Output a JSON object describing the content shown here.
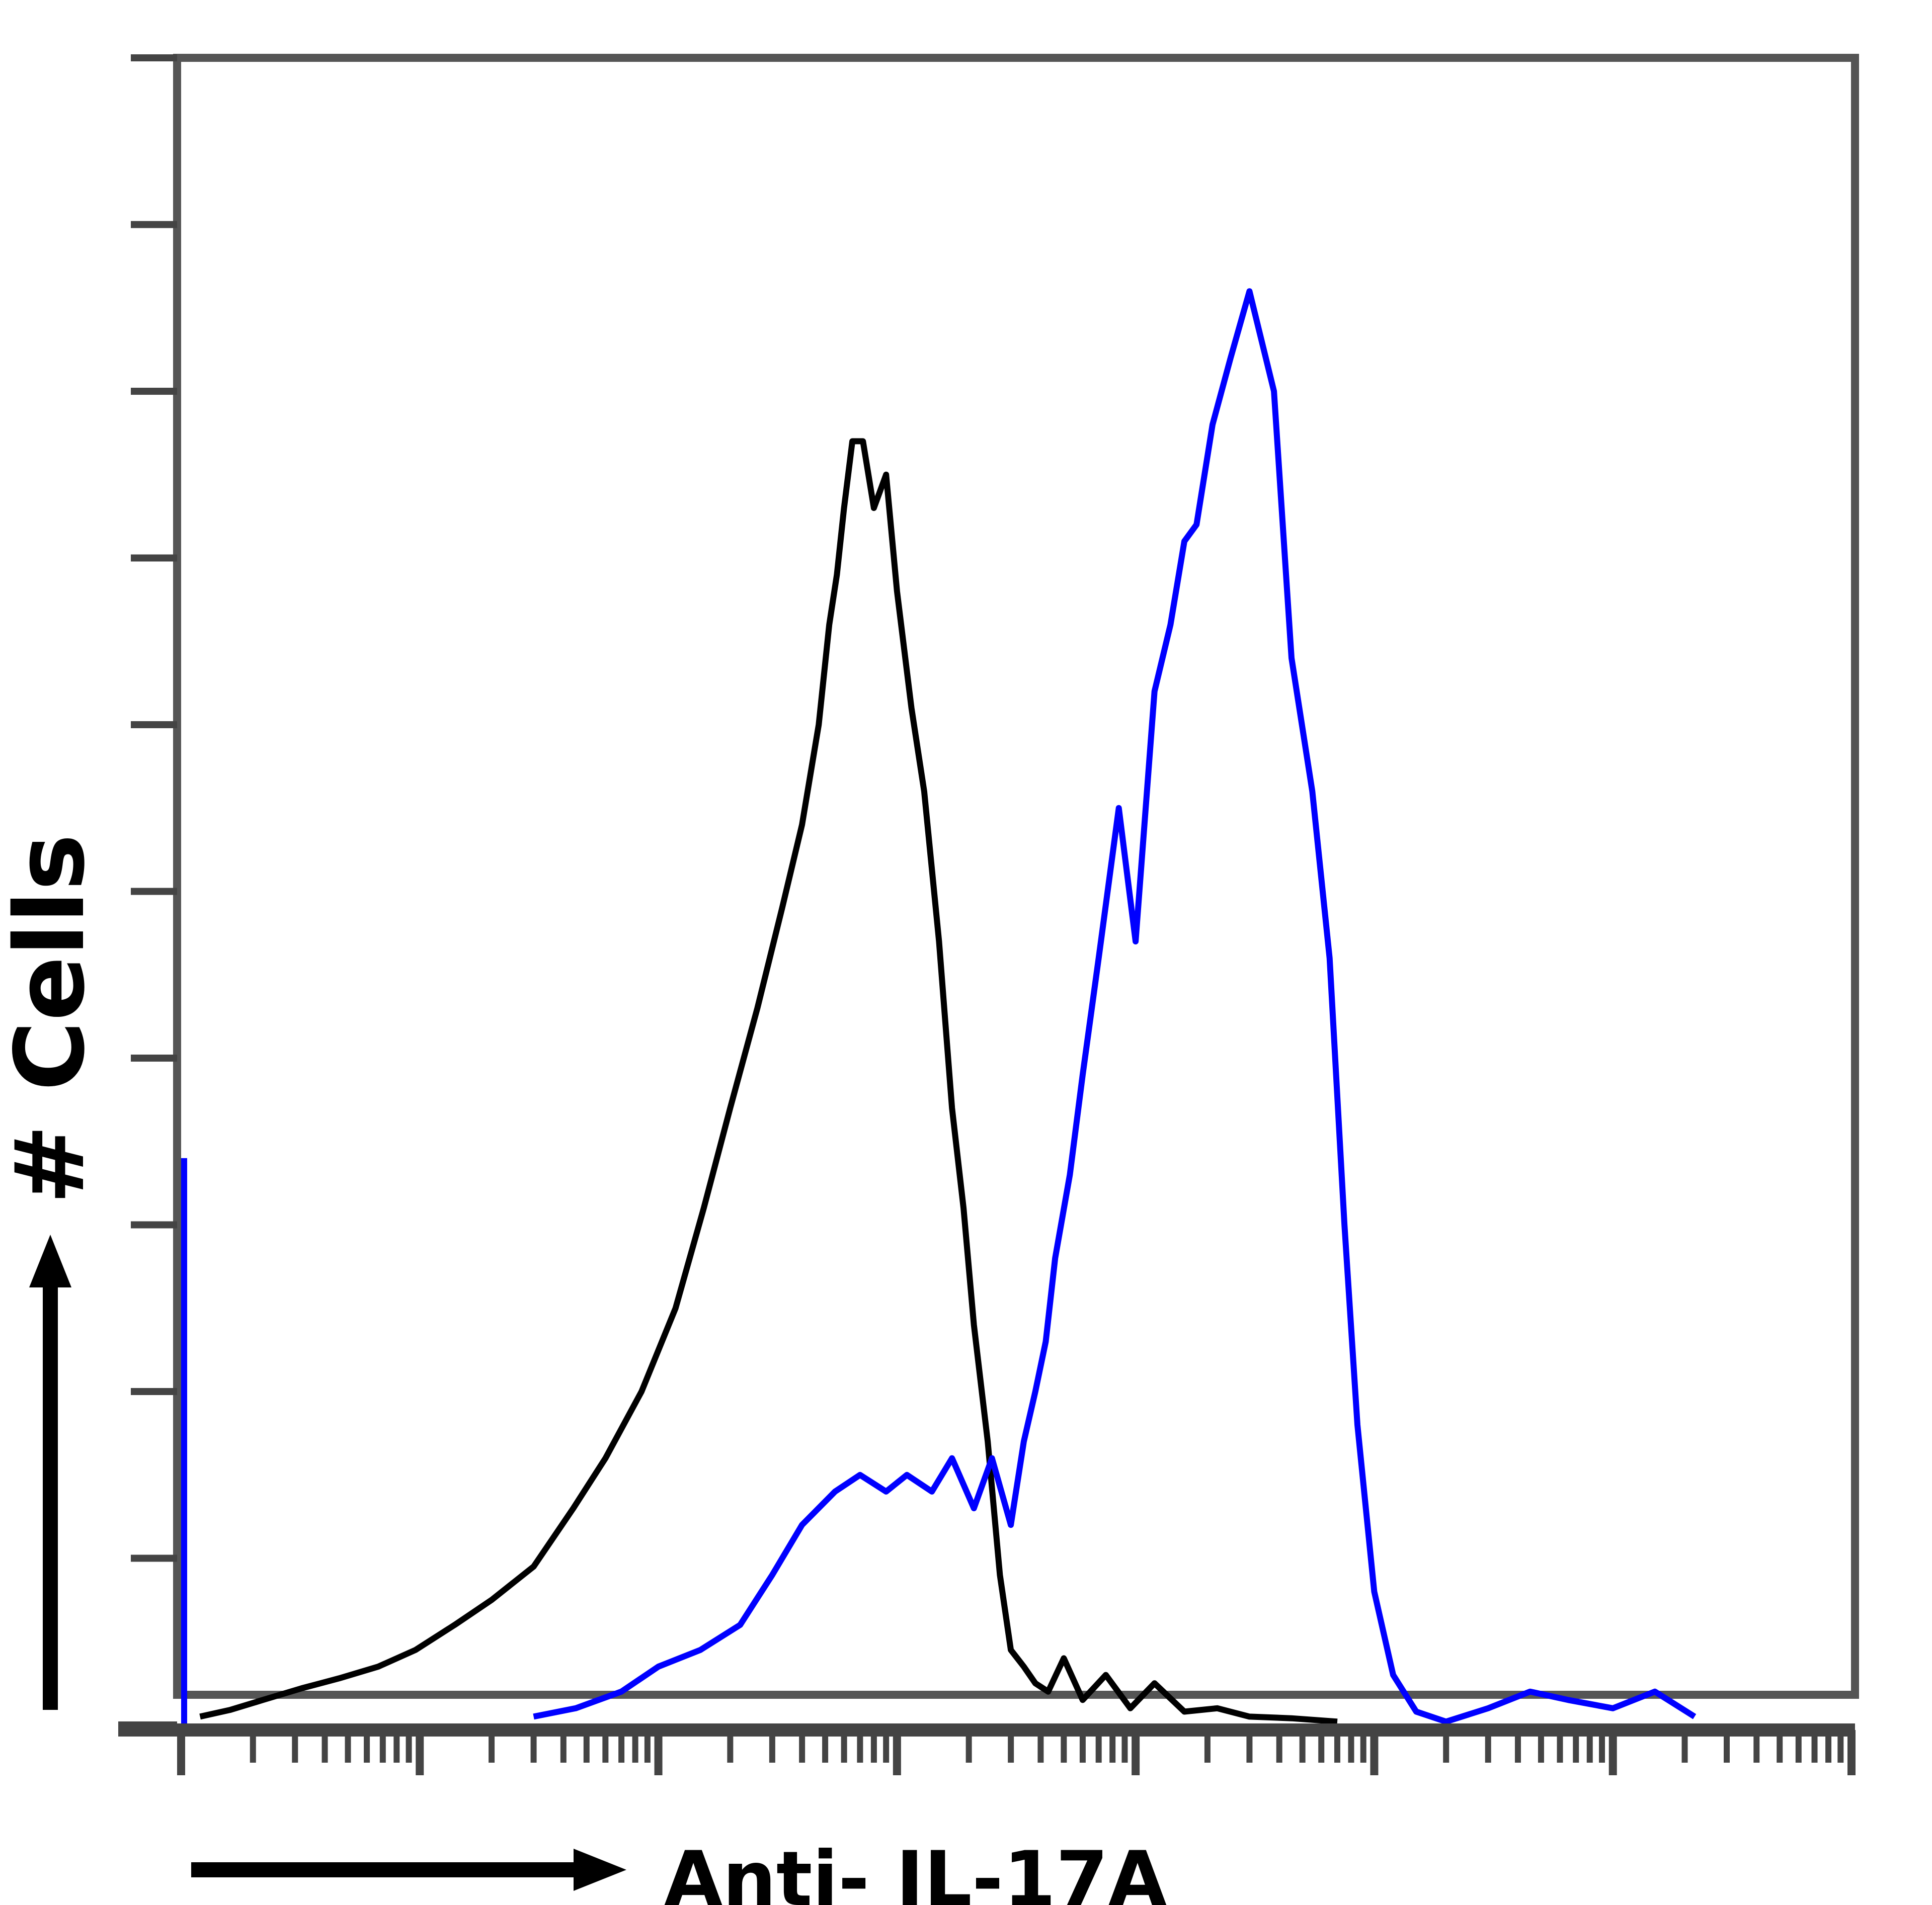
{
  "chart_data": {
    "type": "line",
    "title": "",
    "xlabel": "Anti- IL-17A",
    "ylabel": "# Cells",
    "x_scale": "log",
    "xlim": [
      1,
      10000000
    ],
    "ylim": [
      0,
      100
    ],
    "grid": false,
    "legend": "none",
    "series": [
      {
        "color": "#000000",
        "x": [
          1.2,
          1.6,
          2.2,
          3.2,
          4.6,
          6.7,
          9.6,
          14,
          20,
          30,
          44,
          60,
          85,
          118,
          155,
          200,
          260,
          330,
          400,
          470,
          520,
          560,
          600,
          650,
          720,
          800,
          900,
          1000,
          1150,
          1300,
          1500,
          1700,
          1900,
          2100,
          2400,
          2700,
          3000,
          3400,
          3800,
          4300,
          5000,
          6000,
          7500,
          9500,
          12000,
          16000,
          22000,
          30000,
          45000,
          70000
        ],
        "y": [
          0.5,
          0.9,
          1.5,
          2.2,
          2.8,
          3.5,
          4.5,
          6,
          7.5,
          9.5,
          13,
          16,
          20,
          25,
          31,
          37,
          43,
          49,
          54,
          60,
          66,
          69,
          73,
          77,
          77,
          73,
          75,
          68,
          61,
          56,
          47,
          37,
          31,
          24,
          17,
          9,
          4.5,
          3.5,
          2.5,
          2,
          4,
          1.5,
          3,
          1,
          2.5,
          0.8,
          1,
          0.5,
          0.4,
          0.2
        ]
      },
      {
        "color": "#0000ff",
        "x": [
          30,
          45,
          70,
          100,
          150,
          220,
          300,
          400,
          550,
          700,
          900,
          1100,
          1400,
          1700,
          2100,
          2500,
          3000,
          3400,
          3800,
          4200,
          4600,
          5300,
          6000,
          7000,
          8500,
          10000,
          12000,
          14000,
          16000,
          18000,
          21000,
          25000,
          30000,
          38000,
          45000,
          55000,
          65000,
          75000,
          85000,
          100000,
          120000,
          150000,
          200000,
          300000,
          450000,
          650000,
          1000000,
          1500000,
          2200000
        ],
        "y": [
          0.5,
          1,
          2,
          3.5,
          4.5,
          6,
          9,
          12,
          14,
          15,
          14,
          15,
          14,
          16,
          13,
          16,
          12,
          17,
          20,
          23,
          28,
          33,
          39,
          46,
          55,
          47,
          62,
          66,
          71,
          72,
          78,
          82,
          86,
          80,
          64,
          56,
          46,
          30,
          18,
          8,
          3,
          0.8,
          0.2,
          1,
          2,
          1.5,
          1,
          2,
          0.5
        ]
      }
    ]
  }
}
